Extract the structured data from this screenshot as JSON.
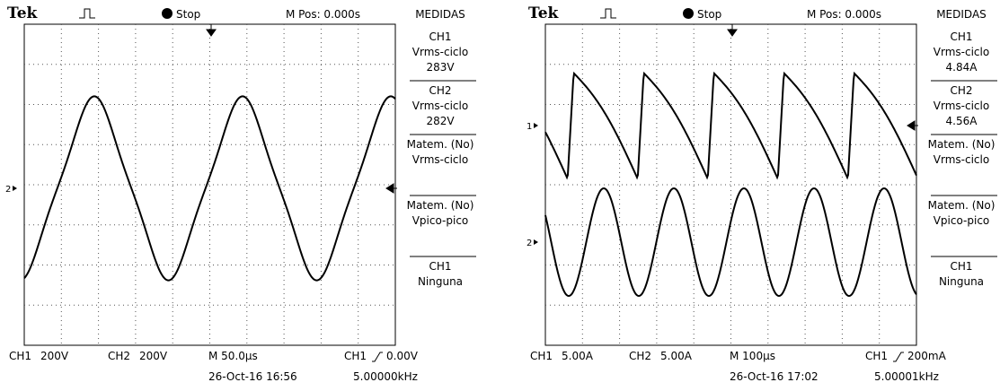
{
  "panels": [
    {
      "brand": "Tek",
      "status": "Stop",
      "mpos": "M Pos: 0.000s",
      "menu_title": "MEDIDAS",
      "menu": [
        [
          "CH1",
          "Vrms-ciclo",
          "283V"
        ],
        [
          "CH2",
          "Vrms-ciclo",
          "282V"
        ],
        [
          "Matem. (No)",
          "Vrms-ciclo"
        ],
        [
          "Matem. (No)",
          "Vpico-pico"
        ],
        [
          "CH1",
          "Ninguna"
        ]
      ],
      "markers": [
        "2"
      ],
      "footer": {
        "ch1": "CH1",
        "ch1_scale": "200V",
        "ch2": "CH2",
        "ch2_scale": "200V",
        "time": "M 50.0µs",
        "trig_ch": "CH1",
        "trig_level": "0.00V",
        "date": "26-Oct-16 16:56",
        "freq": "5.00000kHz"
      }
    },
    {
      "brand": "Tek",
      "status": "Stop",
      "mpos": "M Pos: 0.000s",
      "menu_title": "MEDIDAS",
      "menu": [
        [
          "CH1",
          "Vrms-ciclo",
          "4.84A"
        ],
        [
          "CH2",
          "Vrms-ciclo",
          "4.56A"
        ],
        [
          "Matem. (No)",
          "Vrms-ciclo"
        ],
        [
          "Matem. (No)",
          "Vpico-pico"
        ],
        [
          "CH1",
          "Ninguna"
        ]
      ],
      "markers": [
        "1",
        "2"
      ],
      "footer": {
        "ch1": "CH1",
        "ch1_scale": "5.00A",
        "ch2": "CH2",
        "ch2_scale": "5.00A",
        "time": "M 100µs",
        "trig_ch": "CH1",
        "trig_level": "200mA",
        "date": "26-Oct-16 17:02",
        "freq": "5.00001kHz"
      }
    }
  ]
}
